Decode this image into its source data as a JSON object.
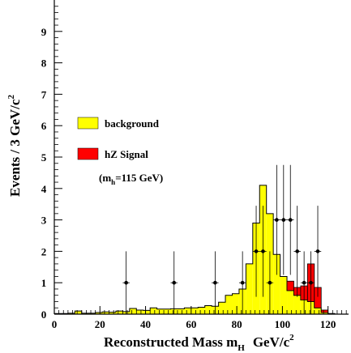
{
  "chart_data": {
    "type": "histogram",
    "ylabel": "Events / 3 GeV/c",
    "ylabel_sup": "2",
    "xlabel": "Reconstructed Mass m",
    "xlabel_sub": "H",
    "xlabel_unit": "GeV/c",
    "xlabel_unit_sup": "2",
    "xlim": [
      0,
      129
    ],
    "ylim": [
      0,
      10
    ],
    "x_ticks": [
      0,
      20,
      40,
      60,
      80,
      100,
      120
    ],
    "y_ticks": [
      0,
      1,
      2,
      3,
      4,
      5,
      6,
      7,
      8,
      9
    ],
    "bin_width": 3,
    "legend": {
      "placement": "left-middle",
      "background_label": "background",
      "signal_label": "hZ Signal",
      "signal_note_prefix": "(m",
      "signal_note_sub": "h",
      "signal_note_suffix": "=115 GeV)"
    },
    "colors": {
      "background": "#ffff00",
      "signal": "#ff0000",
      "outline": "#000000"
    },
    "background_bins": [
      {
        "x0": 0,
        "y": 0.02
      },
      {
        "x0": 3,
        "y": 0.02
      },
      {
        "x0": 6,
        "y": 0.03
      },
      {
        "x0": 9,
        "y": 0.1
      },
      {
        "x0": 12,
        "y": 0.03
      },
      {
        "x0": 15,
        "y": 0.03
      },
      {
        "x0": 18,
        "y": 0.05
      },
      {
        "x0": 21,
        "y": 0.07
      },
      {
        "x0": 24,
        "y": 0.06
      },
      {
        "x0": 27,
        "y": 0.1
      },
      {
        "x0": 30,
        "y": 0.08
      },
      {
        "x0": 33,
        "y": 0.18
      },
      {
        "x0": 36,
        "y": 0.13
      },
      {
        "x0": 39,
        "y": 0.12
      },
      {
        "x0": 42,
        "y": 0.2
      },
      {
        "x0": 45,
        "y": 0.16
      },
      {
        "x0": 48,
        "y": 0.16
      },
      {
        "x0": 51,
        "y": 0.17
      },
      {
        "x0": 54,
        "y": 0.17
      },
      {
        "x0": 57,
        "y": 0.2
      },
      {
        "x0": 60,
        "y": 0.2
      },
      {
        "x0": 63,
        "y": 0.22
      },
      {
        "x0": 66,
        "y": 0.27
      },
      {
        "x0": 69,
        "y": 0.25
      },
      {
        "x0": 72,
        "y": 0.38
      },
      {
        "x0": 75,
        "y": 0.6
      },
      {
        "x0": 78,
        "y": 0.65
      },
      {
        "x0": 81,
        "y": 0.8
      },
      {
        "x0": 84,
        "y": 1.6
      },
      {
        "x0": 87,
        "y": 2.9
      },
      {
        "x0": 90,
        "y": 4.1
      },
      {
        "x0": 93,
        "y": 3.2
      },
      {
        "x0": 96,
        "y": 1.9
      },
      {
        "x0": 99,
        "y": 1.2
      },
      {
        "x0": 102,
        "y": 0.75
      },
      {
        "x0": 105,
        "y": 0.6
      },
      {
        "x0": 108,
        "y": 0.45
      },
      {
        "x0": 111,
        "y": 0.4
      },
      {
        "x0": 114,
        "y": 0.2
      },
      {
        "x0": 117,
        "y": 0.05
      },
      {
        "x0": 120,
        "y": 0.02
      }
    ],
    "signal_bins": [
      {
        "x0": 102,
        "y": 0.3
      },
      {
        "x0": 105,
        "y": 0.25
      },
      {
        "x0": 108,
        "y": 0.45
      },
      {
        "x0": 111,
        "y": 1.2
      },
      {
        "x0": 114,
        "y": 0.65
      },
      {
        "x0": 117,
        "y": 0.08
      }
    ],
    "data_points": [
      {
        "x": 31.5,
        "y": 1,
        "err_up": 1,
        "err_down": 1
      },
      {
        "x": 52.5,
        "y": 1,
        "err_up": 1,
        "err_down": 1
      },
      {
        "x": 70.5,
        "y": 1,
        "err_up": 1,
        "err_down": 1
      },
      {
        "x": 82.5,
        "y": 1,
        "err_up": 1,
        "err_down": 1
      },
      {
        "x": 88.5,
        "y": 2,
        "err_up": 1.45,
        "err_down": 1.45
      },
      {
        "x": 91.5,
        "y": 2,
        "err_up": 1.45,
        "err_down": 1.45
      },
      {
        "x": 94.5,
        "y": 1,
        "err_up": 1,
        "err_down": 1
      },
      {
        "x": 97.5,
        "y": 3,
        "err_up": 1.75,
        "err_down": 1.75
      },
      {
        "x": 100.5,
        "y": 3,
        "err_up": 1.75,
        "err_down": 1.75
      },
      {
        "x": 103.5,
        "y": 3,
        "err_up": 1.75,
        "err_down": 1.75
      },
      {
        "x": 106.5,
        "y": 2,
        "err_up": 1.45,
        "err_down": 1.45
      },
      {
        "x": 109.5,
        "y": 1,
        "err_up": 1,
        "err_down": 1
      },
      {
        "x": 112.5,
        "y": 1,
        "err_up": 1,
        "err_down": 1
      },
      {
        "x": 115.5,
        "y": 2,
        "err_up": 1.45,
        "err_down": 1.45
      }
    ]
  }
}
